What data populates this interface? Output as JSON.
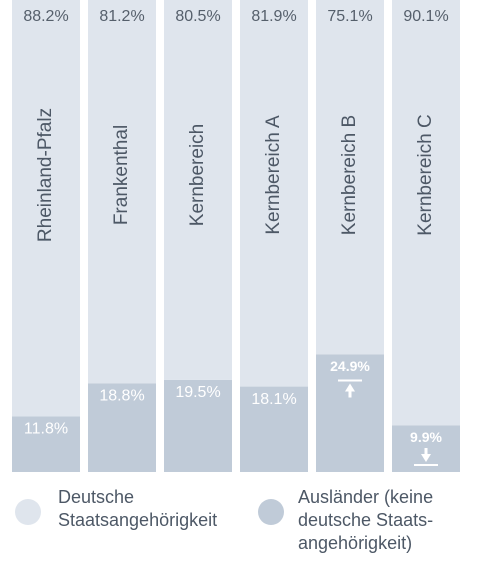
{
  "chart_data": {
    "type": "stacked_bar",
    "categories": [
      "Rheinland-Pfalz",
      "Frankenthal",
      "Kernbereich",
      "Kernbereich A",
      "Kernbereich B",
      "Kernbereich C"
    ],
    "series": [
      {
        "name": "Ausländer (keine\ndeutsche Staats-\nangehörigkeit)",
        "color": "#c0cbd8",
        "values": [
          11.8,
          18.8,
          19.5,
          18.1,
          24.9,
          9.9
        ]
      },
      {
        "name": "Deutsche\nStaatsangehörigkeit",
        "color": "#dfe5ed",
        "values": [
          88.2,
          81.2,
          80.5,
          81.9,
          75.1,
          90.1
        ]
      }
    ],
    "value_labels": [
      [
        "11.8%",
        "18.8%",
        "19.5%",
        "18.1%",
        "24.9%",
        "9.9%"
      ],
      [
        "88.2%",
        "81.2%",
        "80.5%",
        "81.9%",
        "75.1%",
        "90.1%"
      ]
    ],
    "ylim": [
      0,
      100
    ]
  }
}
